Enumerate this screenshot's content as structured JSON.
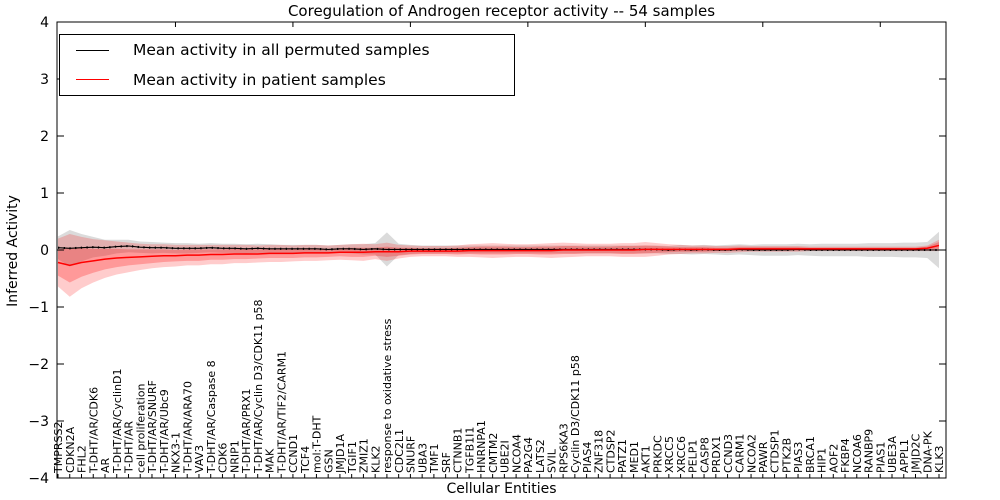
{
  "title": "Coregulation of Androgen receptor activity -- 54 samples",
  "legend": {
    "items": [
      {
        "label": "Mean activity in all permuted samples",
        "color": "#000000"
      },
      {
        "label": "Mean activity in patient samples",
        "color": "#ff0000"
      }
    ]
  },
  "axes": {
    "xlabel": "Cellular Entities",
    "ylabel": "Inferred Activity",
    "yticks": [
      "4",
      "3",
      "2",
      "1",
      "0",
      "−1",
      "−2",
      "−3",
      "−4"
    ]
  },
  "chart_data": {
    "type": "line",
    "title": "Coregulation of Androgen receptor activity -- 54 samples",
    "xlabel": "Cellular Entities",
    "ylabel": "Inferred Activity",
    "ylim": [
      -4,
      4
    ],
    "grid": false,
    "legend_position": "upper left",
    "categories": [
      "TMPRSS2",
      "CDKN2A",
      "FHL2",
      "T-DHT/AR/CDK6",
      "AR",
      "T-DHT/AR/CyclinD1",
      "T-DHT/AR",
      "cell proliferation",
      "T-DHT/AR/SNURF",
      "T-DHT/AR/Ubc9",
      "NKX3-1",
      "T-DHT/AR/ARA70",
      "VAV3",
      "T-DHT/AR/Caspase 8",
      "CDK6",
      "NRIP1",
      "T-DHT/AR/PRX1",
      "T-DHT/AR/Cyclin D3/CDK11 p58",
      "MAK",
      "T-DHT/AR/TIF2/CARM1",
      "CCND1",
      "TCF4",
      "mol:T-DHT",
      "GSN",
      "JMJD1A",
      "TGIF1",
      "ZMIZ1",
      "KLK2",
      "response to oxidative stress",
      "CDC2L1",
      "SNURF",
      "UBA3",
      "TMF1",
      "SRF",
      "CTNNB1",
      "TGFB1I1",
      "HNRNPA1",
      "CMTM2",
      "UBE2I",
      "NCOA4",
      "PA2G4",
      "LATS2",
      "SVIL",
      "RPS6KA3",
      "Cyclin D3/CDK11 p58",
      "PIAS4",
      "ZNF318",
      "CTDSP2",
      "PATZ1",
      "MED1",
      "AKT1",
      "PRKDC",
      "XRCC5",
      "XRCC6",
      "PELP1",
      "CASP8",
      "PRDX1",
      "CCND3",
      "CARM1",
      "NCOA2",
      "PAWR",
      "CTDSP1",
      "PTK2B",
      "PIAS3",
      "BRCA1",
      "HIP1",
      "AOF2",
      "FKBP4",
      "NCOA6",
      "RANBP9",
      "PIAS1",
      "UBE3A",
      "APPL1",
      "JMJD2C",
      "DNA-PK",
      "KLK3"
    ],
    "series": [
      {
        "name": "Mean activity in all permuted samples",
        "color": "#000000",
        "style": "solid-dotted",
        "values": [
          0.04,
          0.03,
          0.04,
          0.05,
          0.04,
          0.06,
          0.07,
          0.05,
          0.04,
          0.04,
          0.03,
          0.03,
          0.03,
          0.04,
          0.03,
          0.03,
          0.02,
          0.03,
          0.02,
          0.02,
          0.02,
          0.02,
          0.02,
          0.01,
          0.02,
          0.02,
          0.01,
          0.02,
          0.01,
          0.01,
          0.01,
          0.01,
          0.01,
          0.01,
          0.01,
          0.01,
          0.01,
          0.01,
          0.01,
          0.01,
          0.01,
          0.01,
          0.01,
          0.01,
          0.01,
          0.01,
          0.01,
          0.01,
          0.01,
          0.01,
          0.01,
          0.01,
          0.0,
          0.01,
          0.0,
          0.01,
          0.0,
          0.0,
          0.01,
          0.0,
          0.0,
          0.0,
          0.0,
          0.01,
          0.0,
          0.0,
          0.0,
          0.0,
          0.0,
          0.0,
          0.0,
          0.0,
          0.0,
          0.0,
          0.0,
          0.0
        ]
      },
      {
        "name": "Mean activity in patient samples",
        "color": "#ff0000",
        "style": "solid",
        "values": [
          -0.22,
          -0.27,
          -0.22,
          -0.19,
          -0.16,
          -0.14,
          -0.13,
          -0.12,
          -0.11,
          -0.1,
          -0.1,
          -0.09,
          -0.09,
          -0.08,
          -0.08,
          -0.07,
          -0.07,
          -0.07,
          -0.06,
          -0.06,
          -0.06,
          -0.05,
          -0.05,
          -0.05,
          -0.04,
          -0.04,
          -0.04,
          -0.03,
          -0.03,
          -0.03,
          -0.02,
          -0.02,
          -0.02,
          -0.02,
          -0.02,
          -0.01,
          -0.01,
          -0.01,
          -0.01,
          -0.01,
          -0.01,
          -0.01,
          -0.01,
          0.0,
          0.0,
          0.0,
          0.0,
          0.0,
          0.0,
          0.0,
          0.01,
          0.01,
          0.01,
          0.01,
          0.01,
          0.01,
          0.01,
          0.01,
          0.02,
          0.02,
          0.02,
          0.02,
          0.02,
          0.02,
          0.02,
          0.02,
          0.02,
          0.02,
          0.02,
          0.02,
          0.02,
          0.02,
          0.02,
          0.02,
          0.03,
          0.08
        ]
      }
    ],
    "bands": [
      {
        "name": "permuted-std",
        "series": 0,
        "color": "rgba(0,0,0,0.14)",
        "halfwidths": [
          0.2,
          0.32,
          0.24,
          0.18,
          0.14,
          0.12,
          0.11,
          0.1,
          0.1,
          0.09,
          0.09,
          0.09,
          0.08,
          0.08,
          0.08,
          0.08,
          0.08,
          0.08,
          0.08,
          0.07,
          0.07,
          0.07,
          0.07,
          0.07,
          0.07,
          0.08,
          0.09,
          0.1,
          0.3,
          0.1,
          0.08,
          0.07,
          0.07,
          0.07,
          0.07,
          0.07,
          0.07,
          0.07,
          0.07,
          0.07,
          0.07,
          0.07,
          0.07,
          0.07,
          0.07,
          0.07,
          0.07,
          0.07,
          0.07,
          0.07,
          0.07,
          0.07,
          0.07,
          0.08,
          0.08,
          0.08,
          0.08,
          0.09,
          0.09,
          0.09,
          0.1,
          0.1,
          0.1,
          0.1,
          0.1,
          0.11,
          0.11,
          0.11,
          0.11,
          0.12,
          0.12,
          0.12,
          0.13,
          0.13,
          0.14,
          0.32
        ]
      },
      {
        "name": "patient-std-outer",
        "series": 1,
        "color": "rgba(255,0,0,0.20)",
        "halfwidths": [
          0.42,
          0.55,
          0.45,
          0.38,
          0.33,
          0.29,
          0.26,
          0.23,
          0.21,
          0.2,
          0.19,
          0.18,
          0.18,
          0.17,
          0.17,
          0.16,
          0.16,
          0.15,
          0.15,
          0.15,
          0.14,
          0.14,
          0.14,
          0.13,
          0.13,
          0.14,
          0.15,
          0.13,
          0.16,
          0.12,
          0.1,
          0.09,
          0.09,
          0.09,
          0.1,
          0.11,
          0.12,
          0.13,
          0.12,
          0.11,
          0.11,
          0.12,
          0.13,
          0.13,
          0.12,
          0.11,
          0.11,
          0.11,
          0.12,
          0.12,
          0.13,
          0.11,
          0.09,
          0.08,
          0.07,
          0.07,
          0.06,
          0.06,
          0.06,
          0.05,
          0.05,
          0.05,
          0.05,
          0.05,
          0.04,
          0.04,
          0.04,
          0.04,
          0.04,
          0.04,
          0.04,
          0.04,
          0.04,
          0.04,
          0.05,
          0.1
        ]
      },
      {
        "name": "patient-std-inner",
        "series": 1,
        "color": "rgba(255,0,0,0.25)",
        "halfwidths": [
          0.23,
          0.3,
          0.25,
          0.21,
          0.18,
          0.16,
          0.14,
          0.13,
          0.12,
          0.11,
          0.1,
          0.1,
          0.1,
          0.09,
          0.09,
          0.09,
          0.09,
          0.08,
          0.08,
          0.08,
          0.08,
          0.08,
          0.08,
          0.07,
          0.07,
          0.08,
          0.08,
          0.07,
          0.09,
          0.07,
          0.06,
          0.05,
          0.05,
          0.05,
          0.06,
          0.06,
          0.07,
          0.07,
          0.07,
          0.06,
          0.06,
          0.07,
          0.07,
          0.07,
          0.07,
          0.06,
          0.06,
          0.06,
          0.07,
          0.07,
          0.07,
          0.06,
          0.05,
          0.04,
          0.04,
          0.04,
          0.03,
          0.03,
          0.03,
          0.03,
          0.03,
          0.03,
          0.03,
          0.03,
          0.02,
          0.02,
          0.02,
          0.02,
          0.02,
          0.02,
          0.02,
          0.02,
          0.02,
          0.02,
          0.03,
          0.06
        ]
      }
    ]
  }
}
